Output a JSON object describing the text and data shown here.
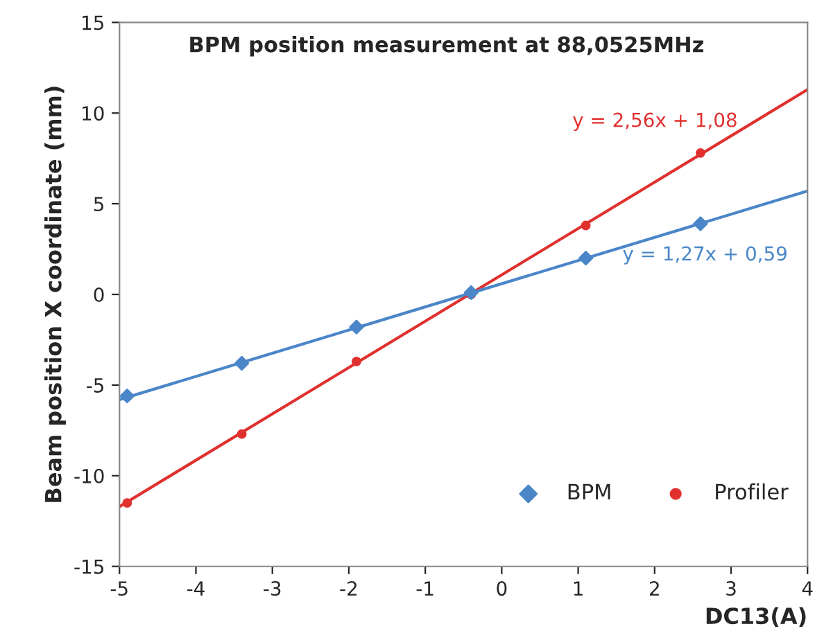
{
  "chart_data": {
    "type": "scatter",
    "title": "BPM position measurement at 88,0525MHz",
    "xlabel": "DC13(A)",
    "ylabel": "Beam position X coordinate (mm)",
    "xlim": [
      -5,
      4
    ],
    "xticks": [
      -5,
      -4,
      -3,
      -2,
      -1,
      0,
      1,
      2,
      3,
      4
    ],
    "ylim": [
      -15,
      15
    ],
    "yticks": [
      -15,
      -10,
      -5,
      0,
      5,
      10,
      15
    ],
    "grid": false,
    "legend": "bottom right",
    "series": [
      {
        "name": "BPM",
        "marker": "diamond",
        "color": "#4a86c8",
        "x": [
          -4.9,
          -3.4,
          -1.9,
          -0.4,
          1.1,
          2.6
        ],
        "values": [
          -5.6,
          -3.8,
          -1.8,
          0.1,
          2.0,
          3.9
        ]
      },
      {
        "name": "Profiler",
        "marker": "circle",
        "color": "#e0312f",
        "x": [
          -4.9,
          -3.4,
          -1.9,
          -0.4,
          1.1,
          2.6
        ],
        "values": [
          -11.5,
          -7.7,
          -3.7,
          0.0,
          3.8,
          7.8
        ]
      },
      {
        "type": "line",
        "color": "#e0312f",
        "x": [
          -5,
          4
        ],
        "values": [
          -11.7,
          11.3
        ]
      },
      {
        "type": "line",
        "color": "#4a86c8",
        "x": [
          -5,
          4
        ],
        "values": [
          -5.8,
          5.7
        ]
      }
    ],
    "annotations": [
      "y = 2,56x + 1,08",
      "y = 1,27x + 0,59"
    ]
  }
}
